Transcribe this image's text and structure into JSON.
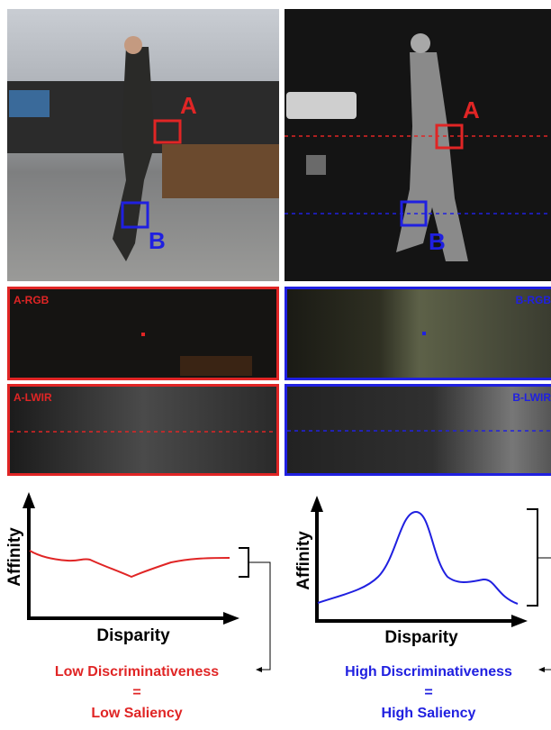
{
  "images": {
    "rgb": {
      "labels": [
        "A",
        "B"
      ]
    },
    "lwir": {
      "labels": [
        "A",
        "B"
      ]
    }
  },
  "patches": [
    {
      "label": "A-RGB"
    },
    {
      "label": "B-RGB"
    },
    {
      "label": "A-LWIR"
    },
    {
      "label": "B-LWIR"
    }
  ],
  "plots": [
    {
      "y_label": "Affinity",
      "x_label": "Disparity",
      "caption": [
        "Low Discriminativeness",
        "=",
        "Low Saliency"
      ]
    },
    {
      "y_label": "Affinity",
      "x_label": "Disparity",
      "caption": [
        "High Discriminativeness",
        "=",
        "High Saliency"
      ]
    }
  ]
}
